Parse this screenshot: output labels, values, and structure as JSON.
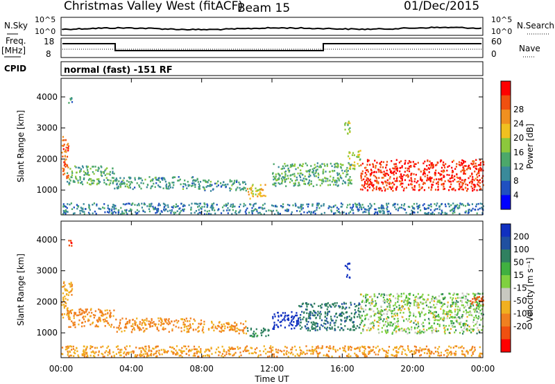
{
  "header": {
    "station": "Christmas Valley West (fitACF)",
    "beam": "Beam 15",
    "date": "01/Dec/2015"
  },
  "noise_panel": {
    "left_label": "N.Sky",
    "right_label": "N.Search",
    "left_ticks": [
      "10^5",
      "10^0"
    ],
    "right_ticks": [
      "10^5",
      "10^0"
    ]
  },
  "freq_panel": {
    "left_label_1": "Freq.",
    "left_label_2": "[MHz]",
    "right_label": "Nave",
    "left_ticks": [
      "18",
      "8"
    ],
    "right_ticks": [
      "60",
      "0"
    ]
  },
  "cpid": {
    "label": "CPID",
    "value": "normal (fast) -151 RF"
  },
  "x_axis": {
    "ticks": [
      "00:00",
      "04:00",
      "08:00",
      "12:00",
      "16:00",
      "20:00",
      "00:00"
    ],
    "label": "Time UT"
  },
  "chart_data": [
    {
      "type": "heatmap",
      "name": "power",
      "ylabel": "Slant Range [km]",
      "yticks": [
        "1000",
        "2000",
        "3000",
        "4000"
      ],
      "ylim": [
        200,
        4600
      ],
      "xlim_hours": [
        0,
        24
      ],
      "colorbar_label": "Power [dB]",
      "colorbar_ticks": [
        "4",
        "8",
        "12",
        "16",
        "20",
        "24",
        "28"
      ],
      "colorbar_colors": [
        "#0000ff",
        "#2050c0",
        "#3a8a9a",
        "#4ca86a",
        "#8cc83c",
        "#f0c020",
        "#f09020",
        "#f05010",
        "#ff0000"
      ],
      "regions": [
        {
          "t0": 0.0,
          "t1": 0.4,
          "r0": 1400,
          "r1": 2800,
          "value": 24
        },
        {
          "t0": 0.3,
          "t1": 3.0,
          "r0": 1200,
          "r1": 1800,
          "value": 12
        },
        {
          "t0": 3.0,
          "t1": 8.0,
          "r0": 1050,
          "r1": 1450,
          "value": 10
        },
        {
          "t0": 8.0,
          "t1": 10.5,
          "r0": 1000,
          "r1": 1350,
          "value": 10
        },
        {
          "t0": 10.5,
          "t1": 11.6,
          "r0": 750,
          "r1": 1200,
          "value": 18
        },
        {
          "t0": 12.0,
          "t1": 16.5,
          "r0": 1150,
          "r1": 1900,
          "value": 12
        },
        {
          "t0": 16.3,
          "t1": 17.0,
          "r0": 1700,
          "r1": 2300,
          "value": 16
        },
        {
          "t0": 17.0,
          "t1": 24.0,
          "r0": 1000,
          "r1": 2000,
          "value": 27
        },
        {
          "t0": 0.0,
          "t1": 24.0,
          "r0": 250,
          "r1": 600,
          "value": 8
        },
        {
          "t0": 0.4,
          "t1": 0.6,
          "r0": 3800,
          "r1": 4000,
          "value": 10
        },
        {
          "t0": 16.1,
          "t1": 16.4,
          "r0": 2800,
          "r1": 3400,
          "value": 16
        }
      ]
    },
    {
      "type": "heatmap",
      "name": "velocity",
      "ylabel": "Slant Range [km]",
      "yticks": [
        "1000",
        "2000",
        "3000",
        "4000"
      ],
      "ylim": [
        200,
        4600
      ],
      "xlim_hours": [
        0,
        24
      ],
      "colorbar_label": "Velocity [m s⁻¹]",
      "colorbar_ticks": [
        "200",
        "100",
        "50",
        "15",
        "-15",
        "-50",
        "-100",
        "-200"
      ],
      "colorbar_colors": [
        "#1030c0",
        "#2050a0",
        "#308060",
        "#40b040",
        "#80d040",
        "#c8c8c0",
        "#f0b020",
        "#f08020",
        "#f05010",
        "#ff0000"
      ],
      "regions": [
        {
          "t0": 0.0,
          "t1": 0.6,
          "r0": 1500,
          "r1": 2700,
          "value": -40
        },
        {
          "t0": 0.3,
          "t1": 3.0,
          "r0": 1200,
          "r1": 1800,
          "value": -60
        },
        {
          "t0": 3.0,
          "t1": 8.0,
          "r0": 1050,
          "r1": 1500,
          "value": -60
        },
        {
          "t0": 8.0,
          "t1": 10.5,
          "r0": 1000,
          "r1": 1400,
          "value": -55
        },
        {
          "t0": 10.5,
          "t1": 11.8,
          "r0": 900,
          "r1": 1200,
          "value": 30
        },
        {
          "t0": 12.0,
          "t1": 13.5,
          "r0": 1150,
          "r1": 1700,
          "value": 150
        },
        {
          "t0": 13.5,
          "t1": 17.0,
          "r0": 1100,
          "r1": 2000,
          "value": 40
        },
        {
          "t0": 17.0,
          "t1": 24.0,
          "r0": 1000,
          "r1": 2300,
          "value": 0
        },
        {
          "t0": 23.2,
          "t1": 24.0,
          "r0": 1900,
          "r1": 2200,
          "value": -150
        },
        {
          "t0": 0.0,
          "t1": 24.0,
          "r0": 250,
          "r1": 600,
          "value": -50
        },
        {
          "t0": 0.4,
          "t1": 0.6,
          "r0": 3800,
          "r1": 4000,
          "value": -200
        },
        {
          "t0": 16.1,
          "t1": 16.4,
          "r0": 2800,
          "r1": 3300,
          "value": 200
        }
      ]
    }
  ]
}
